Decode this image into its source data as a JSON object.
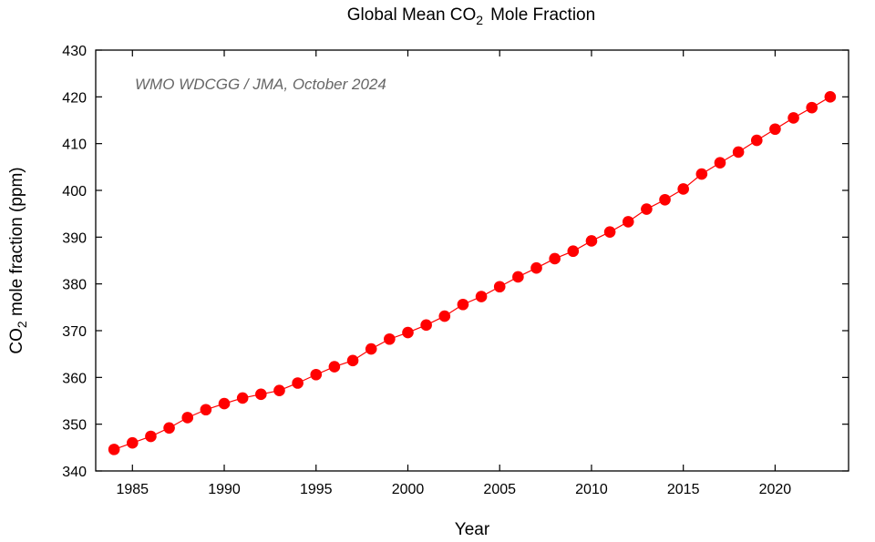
{
  "chart_data": {
    "type": "line",
    "title": "Global Mean CO2  Mole Fraction",
    "title_parts": {
      "pre": "Global Mean CO",
      "sub": "2",
      "post": "Mole Fraction"
    },
    "xlabel": "Year",
    "ylabel": "CO2 mole fraction (ppm)",
    "ylabel_parts": {
      "pre": "CO",
      "sub": "2",
      "post": " mole fraction (ppm)"
    },
    "annotation": "WMO WDCGG / JMA, October 2024",
    "xlim": [
      1983,
      2024
    ],
    "ylim": [
      340,
      430
    ],
    "xticks": [
      1985,
      1990,
      1995,
      2000,
      2005,
      2010,
      2015,
      2020
    ],
    "yticks": [
      340,
      350,
      360,
      370,
      380,
      390,
      400,
      410,
      420,
      430
    ],
    "grid": false,
    "series": [
      {
        "name": "Global mean CO2",
        "color": "#ff0000",
        "x": [
          1984,
          1985,
          1986,
          1987,
          1988,
          1989,
          1990,
          1991,
          1992,
          1993,
          1994,
          1995,
          1996,
          1997,
          1998,
          1999,
          2000,
          2001,
          2002,
          2003,
          2004,
          2005,
          2006,
          2007,
          2008,
          2009,
          2010,
          2011,
          2012,
          2013,
          2014,
          2015,
          2016,
          2017,
          2018,
          2019,
          2020,
          2021,
          2022,
          2023
        ],
        "values": [
          344.6,
          346.0,
          347.4,
          349.2,
          351.4,
          353.1,
          354.4,
          355.6,
          356.4,
          357.2,
          358.8,
          360.6,
          362.3,
          363.6,
          366.1,
          368.2,
          369.6,
          371.2,
          373.1,
          375.6,
          377.3,
          379.4,
          381.5,
          383.4,
          385.4,
          387.0,
          389.2,
          391.1,
          393.3,
          396.0,
          398.0,
          400.3,
          403.5,
          405.9,
          408.2,
          410.7,
          413.1,
          415.5,
          417.7,
          420.0
        ]
      }
    ]
  }
}
